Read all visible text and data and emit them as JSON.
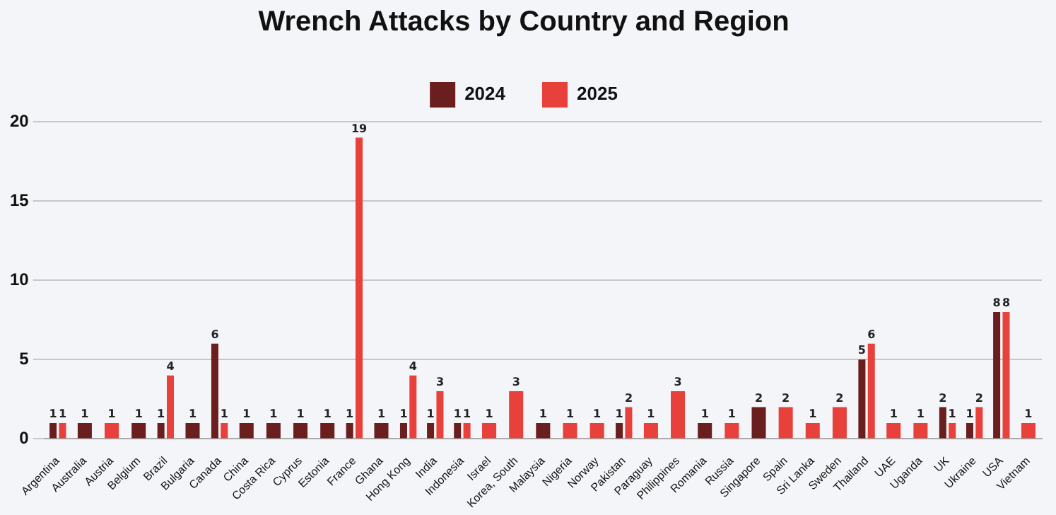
{
  "chart_data": {
    "type": "bar",
    "title": "Wrench Attacks by Country and Region",
    "categories": [
      "Argentina",
      "Australia",
      "Austria",
      "Belgium",
      "Brazil",
      "Bulgaria",
      "Canada",
      "China",
      "Costa Rica",
      "Cyprus",
      "Estonia",
      "France",
      "Ghana",
      "Hong Kong",
      "India",
      "Indonesia",
      "Israel",
      "Korea, South",
      "Malaysia",
      "Nigeria",
      "Norway",
      "Pakistan",
      "Paraguay",
      "Philippines",
      "Romania",
      "Russia",
      "Singapore",
      "Spain",
      "Sri Lanka",
      "Sweden",
      "Thailand",
      "UAE",
      "Uganda",
      "UK",
      "Ukraine",
      "USA",
      "Vietnam"
    ],
    "series": [
      {
        "name": "2024",
        "color": "#6b1e1e",
        "values": [
          1,
          1,
          null,
          1,
          1,
          1,
          6,
          1,
          1,
          1,
          1,
          1,
          1,
          1,
          1,
          1,
          null,
          null,
          1,
          null,
          null,
          1,
          null,
          null,
          1,
          null,
          2,
          null,
          null,
          null,
          5,
          null,
          null,
          2,
          1,
          8,
          null
        ]
      },
      {
        "name": "2025",
        "color": "#e8403a",
        "values": [
          1,
          null,
          1,
          null,
          4,
          null,
          1,
          null,
          null,
          null,
          null,
          19,
          null,
          4,
          3,
          1,
          1,
          3,
          null,
          1,
          1,
          2,
          1,
          3,
          null,
          1,
          null,
          2,
          1,
          2,
          6,
          1,
          1,
          1,
          2,
          8,
          1
        ]
      }
    ],
    "ylim": [
      0,
      20
    ],
    "yticks": [
      0,
      5,
      10,
      15,
      20
    ],
    "grid": "y",
    "legend": "top",
    "data_labels": true
  }
}
